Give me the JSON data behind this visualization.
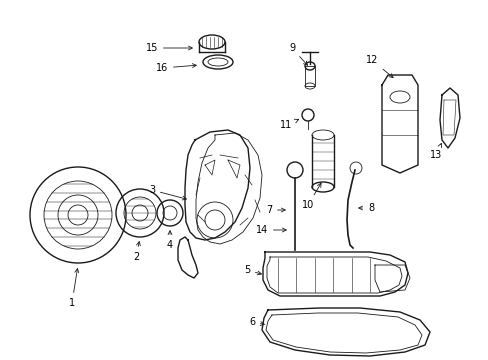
{
  "bg_color": "#ffffff",
  "line_color": "#1a1a1a",
  "label_color": "#000000",
  "fig_width": 4.89,
  "fig_height": 3.6,
  "dpi": 100
}
